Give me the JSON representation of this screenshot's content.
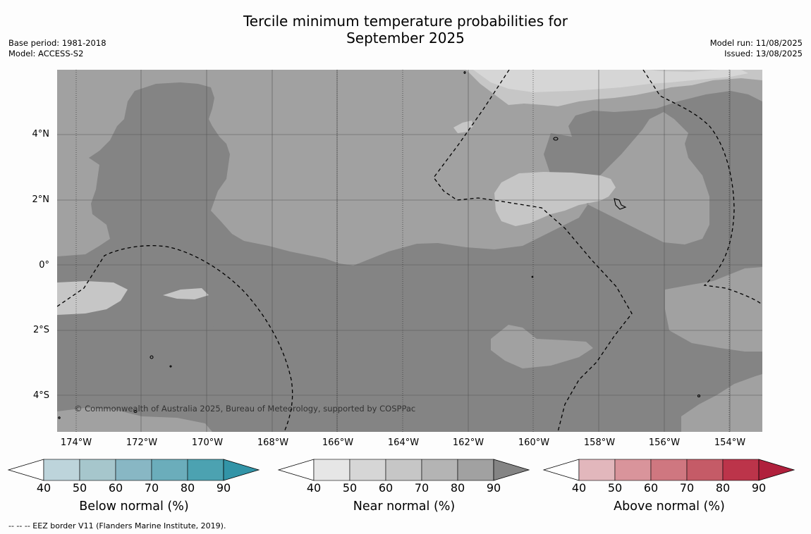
{
  "title_line1": "Tercile minimum temperature probabilities for",
  "title_line2": "September 2025",
  "meta_left": [
    "Base period: 1981-2018",
    "Model: ACCESS-S2"
  ],
  "meta_right": [
    "Model run: 11/08/2025",
    "Issued: 13/08/2025"
  ],
  "copyright": "© Commonwealth of Australia 2025, Bureau of Meteorology, supported by COSPPac",
  "lat_ticks": [
    "4°N",
    "2°N",
    "0°",
    "2°S",
    "4°S"
  ],
  "lon_ticks": [
    "174°W",
    "172°W",
    "170°W",
    "168°W",
    "166°W",
    "164°W",
    "162°W",
    "160°W",
    "158°W",
    "156°W",
    "154°W"
  ],
  "colorbars": [
    {
      "title": "Below normal (%)",
      "ticks": [
        "40",
        "50",
        "60",
        "70",
        "80",
        "90"
      ],
      "colors": [
        "#bdd4db",
        "#a6c6cc",
        "#88b7c4",
        "#6badbb",
        "#4ca2b1",
        "#3294a7"
      ]
    },
    {
      "title": "Near normal (%)",
      "ticks": [
        "40",
        "50",
        "60",
        "70",
        "80",
        "90"
      ],
      "colors": [
        "#e6e6e6",
        "#d6d6d6",
        "#c6c6c6",
        "#b4b4b4",
        "#a1a1a1",
        "#848484"
      ]
    },
    {
      "title": "Above normal (%)",
      "ticks": [
        "40",
        "50",
        "60",
        "70",
        "80",
        "90"
      ],
      "colors": [
        "#e2b7bc",
        "#d9949b",
        "#cf7780",
        "#c55b67",
        "#bc344a",
        "#b0203c"
      ]
    }
  ],
  "footnote": "--  --  -- EEZ border V11 (Flanders Marine Institute, 2019)."
}
